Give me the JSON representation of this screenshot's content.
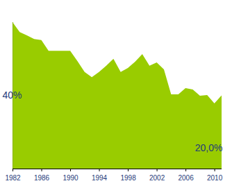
{
  "chart_data": {
    "type": "area",
    "x": [
      1982,
      1983,
      1984,
      1985,
      1986,
      1987,
      1988,
      1989,
      1990,
      1991,
      1992,
      1993,
      1994,
      1995,
      1996,
      1997,
      1998,
      1999,
      2000,
      2001,
      2002,
      2003,
      2004,
      2005,
      2006,
      2007,
      2008,
      2009,
      2010,
      2011
    ],
    "values": [
      40.0,
      37.3,
      36.4,
      35.4,
      35.1,
      32.2,
      32.2,
      32.2,
      32.2,
      29.4,
      26.4,
      25.0,
      26.4,
      28.1,
      30.0,
      26.4,
      27.5,
      29.2,
      31.3,
      28.1,
      29.0,
      27.1,
      20.3,
      20.3,
      22.0,
      21.6,
      19.9,
      20.1,
      17.8,
      20.0
    ],
    "color": "#99cc00",
    "xlim": [
      1982,
      2011
    ],
    "xticks": [
      1982,
      1986,
      1990,
      1994,
      1998,
      2002,
      2006,
      2010
    ],
    "ylim": [
      0,
      40
    ],
    "tick_labels": "x",
    "grid": false,
    "annotations": [
      "40%",
      "20,0%"
    ]
  }
}
